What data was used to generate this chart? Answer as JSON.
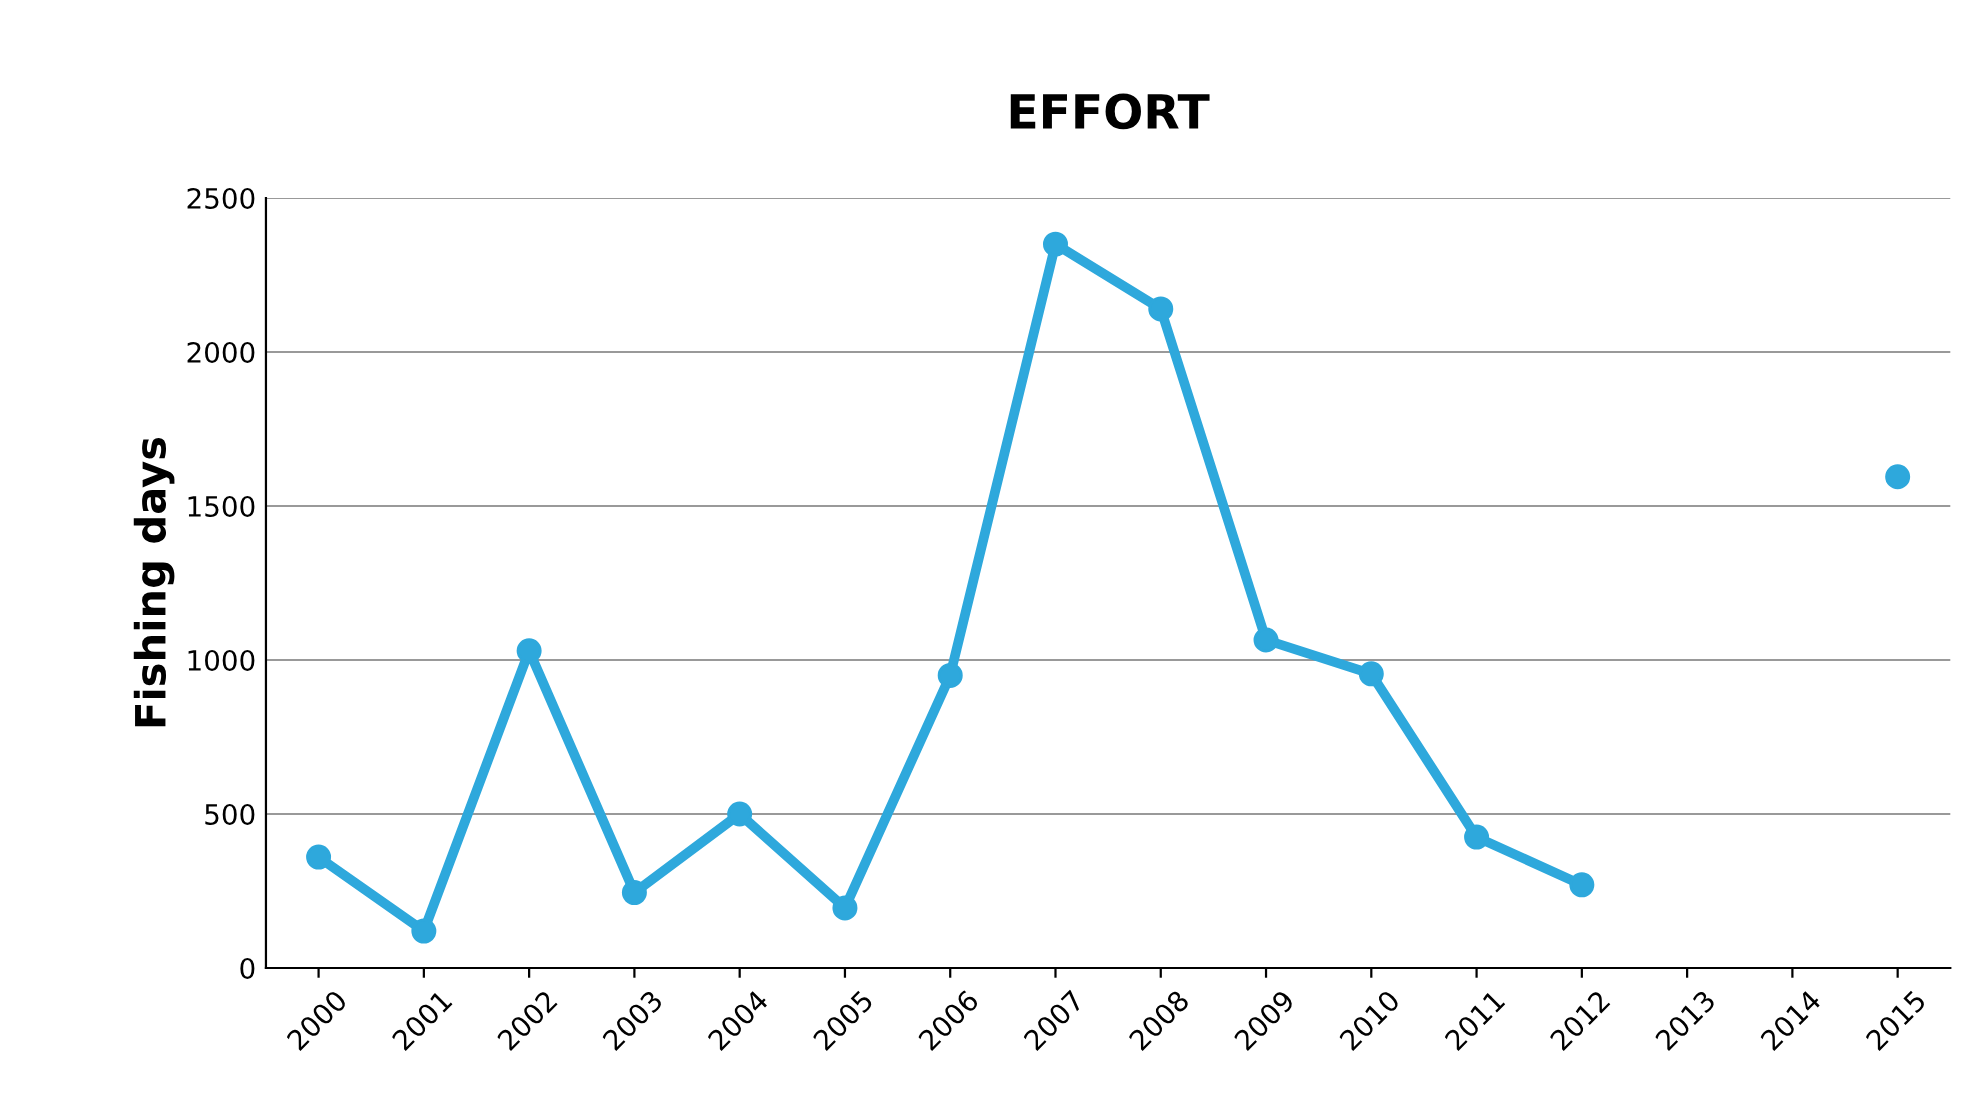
{
  "chart_data": {
    "type": "line",
    "title": "EFFORT",
    "ylabel": "Fishing days",
    "categories": [
      "2000",
      "2001",
      "2002",
      "2003",
      "2004",
      "2005",
      "2006",
      "2007",
      "2008",
      "2009",
      "2010",
      "2011",
      "2012",
      "2013",
      "2014",
      "2015"
    ],
    "series": [
      {
        "color": "#2ea8dc",
        "values": [
          360,
          120,
          1030,
          245,
          500,
          195,
          950,
          2350,
          2140,
          1065,
          955,
          425,
          270,
          null,
          null,
          1595
        ]
      }
    ],
    "ylim": [
      0,
      2500
    ],
    "yticks": [
      0,
      500,
      1000,
      1500,
      2000,
      2500
    ],
    "grid": "y",
    "marker": "circle",
    "line_style": "solid"
  }
}
